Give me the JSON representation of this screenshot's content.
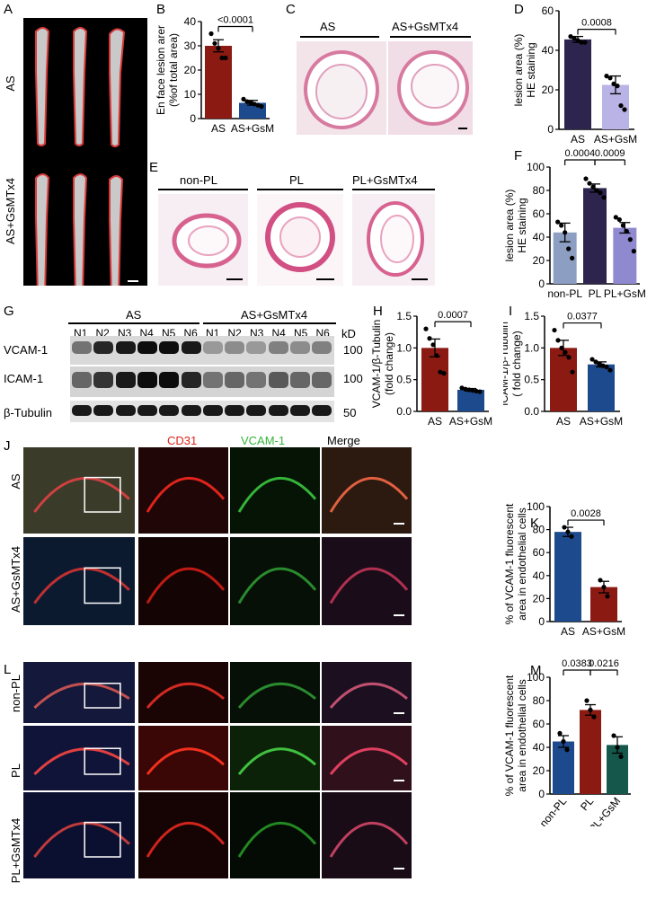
{
  "panels": {
    "A": {
      "label": "A",
      "groups": [
        "AS",
        "AS+GsMTx4"
      ]
    },
    "B": {
      "label": "B"
    },
    "C": {
      "label": "C",
      "groups": [
        "AS",
        "AS+GsMTx4"
      ]
    },
    "D": {
      "label": "D"
    },
    "E": {
      "label": "E",
      "groups": [
        "non-PL",
        "PL",
        "PL+GsMTx4"
      ]
    },
    "F": {
      "label": "F"
    },
    "G": {
      "label": "G",
      "groups": [
        "AS",
        "AS+GsMTx4"
      ],
      "lanes": [
        "N1",
        "N2",
        "N3",
        "N4",
        "N5",
        "N6",
        "N1",
        "N2",
        "N3",
        "N4",
        "N5",
        "N6"
      ],
      "rows": [
        "VCAM-1",
        "ICAM-1",
        "β-Tubulin"
      ],
      "kd_label": "kD",
      "kd_values": [
        "100",
        "100",
        "50"
      ]
    },
    "H": {
      "label": "H"
    },
    "I": {
      "label": "I"
    },
    "J": {
      "label": "J",
      "rows": [
        "AS",
        "AS+GsMTx4"
      ],
      "channels": [
        "CD31",
        "VCAM-1",
        "Merge"
      ]
    },
    "K": {
      "label": "K"
    },
    "L": {
      "label": "L",
      "rows": [
        "non-PL",
        "PL",
        "PL+GsMTx4"
      ]
    },
    "M": {
      "label": "M"
    }
  },
  "chart_data": [
    {
      "id": "B",
      "type": "bar",
      "categories": [
        "AS",
        "AS+GsM"
      ],
      "values": [
        30,
        6.5
      ],
      "errors": [
        2.5,
        1
      ],
      "ylabel": "En face lesion arer\n(%of total area)",
      "ylim": [
        0,
        40
      ],
      "yticks": [
        0,
        10,
        20,
        30,
        40
      ],
      "colors": [
        "#8b1a12",
        "#1d4a8c"
      ],
      "comparisons": [
        {
          "pair": [
            0,
            1
          ],
          "p": "<0.0001"
        }
      ],
      "points": [
        [
          35,
          31,
          29,
          25,
          25
        ],
        [
          8,
          7,
          6.5,
          6,
          5.5,
          5
        ]
      ]
    },
    {
      "id": "D",
      "type": "bar",
      "categories": [
        "AS",
        "AS+GsM"
      ],
      "values": [
        45.5,
        22.5
      ],
      "errors": [
        1.5,
        4.5
      ],
      "ylabel": "lesion area (%)\nHE staining",
      "ylim": [
        0,
        60
      ],
      "yticks": [
        0,
        20,
        40,
        60
      ],
      "colors": [
        "#2e254f",
        "#b9b3e6"
      ],
      "comparisons": [
        {
          "pair": [
            0,
            1
          ],
          "p": "0.0008"
        }
      ],
      "points": [
        [
          47,
          46,
          45,
          44,
          44
        ],
        [
          27,
          26,
          23,
          22,
          12,
          10
        ]
      ]
    },
    {
      "id": "F",
      "type": "bar",
      "categories": [
        "non-PL",
        "PL",
        "PL+GsM"
      ],
      "values": [
        44,
        82,
        48
      ],
      "errors": [
        8,
        3.5,
        4.5
      ],
      "ylabel": "lesion area (%)\nHE staining",
      "ylim": [
        0,
        100
      ],
      "yticks": [
        0,
        20,
        40,
        60,
        80,
        100
      ],
      "colors": [
        "#8c9fc2",
        "#2e254f",
        "#8f89d0"
      ],
      "comparisons": [
        {
          "pair": [
            0,
            1
          ],
          "p": "0.0004"
        },
        {
          "pair": [
            1,
            2
          ],
          "p": "0.0009"
        }
      ],
      "points": [
        [
          53,
          50,
          44,
          30,
          22
        ],
        [
          90,
          86,
          83,
          80,
          78,
          74
        ],
        [
          57,
          55,
          50,
          45,
          38,
          28
        ]
      ]
    },
    {
      "id": "H",
      "type": "bar",
      "categories": [
        "AS",
        "AS+GsM"
      ],
      "values": [
        1.0,
        0.34
      ],
      "errors": [
        0.14,
        0.02
      ],
      "ylabel": "VCAM-1/β-Tubulin\n(fold change)",
      "ylim": [
        0,
        1.5
      ],
      "yticks": [
        0,
        0.5,
        1.0,
        1.5
      ],
      "colors": [
        "#8b1a12",
        "#1d4a8c"
      ],
      "comparisons": [
        {
          "pair": [
            0,
            1
          ],
          "p": "0.0007"
        }
      ],
      "points": [
        [
          1.3,
          1.15,
          1.05,
          0.88,
          0.62,
          0.6
        ],
        [
          0.37,
          0.35,
          0.34,
          0.33,
          0.32,
          0.31
        ]
      ]
    },
    {
      "id": "I",
      "type": "bar",
      "categories": [
        "AS",
        "AS+GsM"
      ],
      "values": [
        1.0,
        0.74
      ],
      "errors": [
        0.12,
        0.04
      ],
      "ylabel": "ICAM-1/β-Tubulin\n( fold change)",
      "ylim": [
        0,
        1.5
      ],
      "yticks": [
        0,
        0.5,
        1.0,
        1.5
      ],
      "colors": [
        "#8b1a12",
        "#1d4a8c"
      ],
      "comparisons": [
        {
          "pair": [
            0,
            1
          ],
          "p": "0.0377"
        }
      ],
      "points": [
        [
          1.28,
          1.12,
          1.0,
          0.93,
          0.85,
          0.62
        ],
        [
          0.82,
          0.78,
          0.74,
          0.72,
          0.7,
          0.65
        ]
      ]
    },
    {
      "id": "K",
      "type": "bar",
      "categories": [
        "AS",
        "AS+GsM"
      ],
      "values": [
        78,
        30
      ],
      "errors": [
        4,
        5
      ],
      "ylabel": "% of VCAM-1 fluorescent\narea in endothelial cells",
      "ylim": [
        0,
        100
      ],
      "yticks": [
        0,
        20,
        40,
        60,
        80,
        100
      ],
      "colors": [
        "#1d4a8c",
        "#8b1a12"
      ],
      "comparisons": [
        {
          "pair": [
            0,
            1
          ],
          "p": "0.0028"
        }
      ],
      "points": [
        [
          82,
          78,
          74
        ],
        [
          36,
          30,
          22
        ]
      ]
    },
    {
      "id": "M",
      "type": "bar",
      "categories": [
        "non-PL",
        "PL",
        "PL+GsM"
      ],
      "values": [
        45,
        72,
        42
      ],
      "errors": [
        5,
        4.5,
        7
      ],
      "ylabel": "% of VCAM-1 fluorescent\narea in endothelial cells",
      "ylim": [
        0,
        100
      ],
      "yticks": [
        0,
        20,
        40,
        60,
        80,
        100
      ],
      "colors": [
        "#1d4a8c",
        "#8b1a12",
        "#15574a"
      ],
      "comparisons": [
        {
          "pair": [
            0,
            1
          ],
          "p": "0.0383"
        },
        {
          "pair": [
            1,
            2
          ],
          "p": "0.0216"
        }
      ],
      "points": [
        [
          52,
          45,
          38
        ],
        [
          80,
          72,
          66
        ],
        [
          50,
          40,
          32
        ]
      ]
    }
  ],
  "colors": {
    "red_channel": "#e0241c",
    "green_channel": "#35b43a",
    "bg": "#ffffff"
  }
}
